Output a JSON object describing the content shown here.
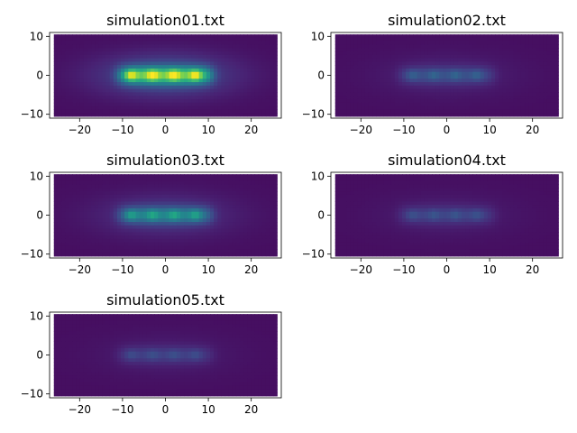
{
  "chart_data": [
    {
      "type": "heatmap",
      "title": "simulation01.txt",
      "xlim": [
        -27,
        27
      ],
      "ylim": [
        -11,
        11
      ],
      "xticks": [
        -20,
        -10,
        0,
        10,
        20
      ],
      "yticks": [
        -10,
        0,
        10
      ],
      "extent": [
        -26,
        26,
        -10.5,
        10.5
      ],
      "intensity": 1.0,
      "hotspots_x": [
        -8,
        -3,
        2,
        7
      ],
      "colormap": "viridis"
    },
    {
      "type": "heatmap",
      "title": "simulation02.txt",
      "xlim": [
        -27,
        27
      ],
      "ylim": [
        -11,
        11
      ],
      "xticks": [
        -20,
        -10,
        0,
        10,
        20
      ],
      "yticks": [
        -10,
        0,
        10
      ],
      "extent": [
        -26,
        26,
        -10.5,
        10.5
      ],
      "intensity": 0.28,
      "hotspots_x": [
        -8,
        -3,
        2,
        7
      ],
      "colormap": "viridis"
    },
    {
      "type": "heatmap",
      "title": "simulation03.txt",
      "xlim": [
        -27,
        27
      ],
      "ylim": [
        -11,
        11
      ],
      "xticks": [
        -20,
        -10,
        0,
        10,
        20
      ],
      "yticks": [
        -10,
        0,
        10
      ],
      "extent": [
        -26,
        26,
        -10.5,
        10.5
      ],
      "intensity": 0.55,
      "hotspots_x": [
        -8,
        -3,
        2,
        7
      ],
      "colormap": "viridis"
    },
    {
      "type": "heatmap",
      "title": "simulation04.txt",
      "xlim": [
        -27,
        27
      ],
      "ylim": [
        -11,
        11
      ],
      "xticks": [
        -20,
        -10,
        0,
        10,
        20
      ],
      "yticks": [
        -10,
        0,
        10
      ],
      "extent": [
        -26,
        26,
        -10.5,
        10.5
      ],
      "intensity": 0.22,
      "hotspots_x": [
        -8,
        -3,
        2,
        7
      ],
      "colormap": "viridis"
    },
    {
      "type": "heatmap",
      "title": "simulation05.txt",
      "xlim": [
        -27,
        27
      ],
      "ylim": [
        -11,
        11
      ],
      "xticks": [
        -20,
        -10,
        0,
        10,
        20
      ],
      "yticks": [
        -10,
        0,
        10
      ],
      "extent": [
        -26,
        26,
        -10.5,
        10.5
      ],
      "intensity": 0.2,
      "hotspots_x": [
        -8,
        -3,
        2,
        7
      ],
      "colormap": "viridis"
    }
  ]
}
